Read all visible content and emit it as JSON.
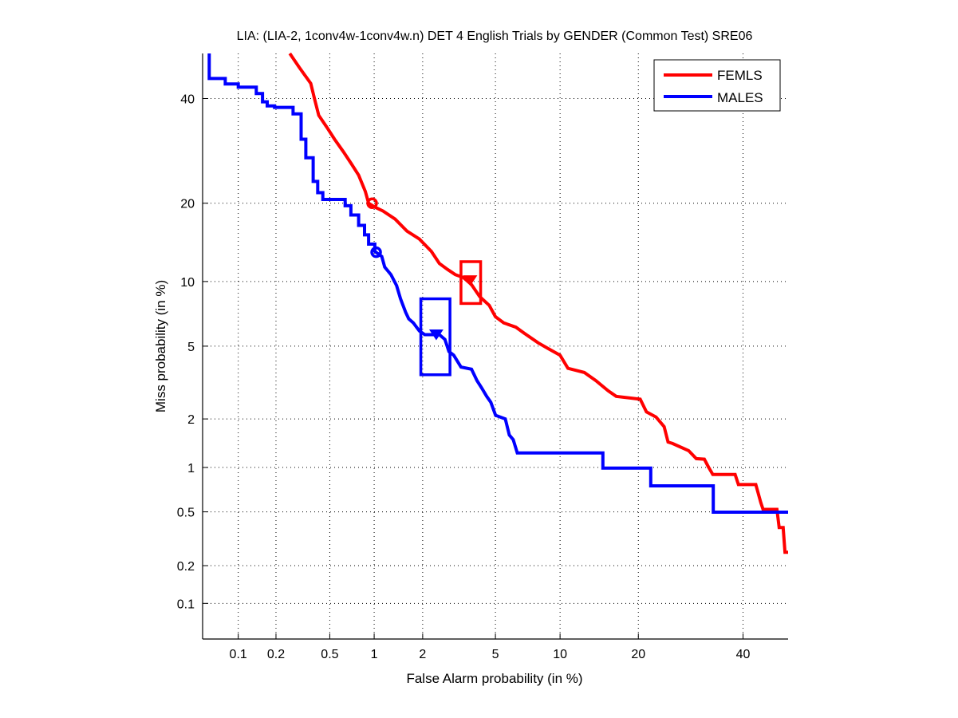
{
  "chart_data": {
    "type": "line",
    "subtype": "DET curve (normal-deviate axes)",
    "title": "LIA: (LIA-2, 1conv4w-1conv4w.n) DET 4 English Trials by GENDER (Common Test) SRE06",
    "xlabel": "False Alarm probability (in %)",
    "ylabel": "Miss probability (in %)",
    "xlim": [
      0.05,
      50
    ],
    "ylim": [
      0.05,
      50
    ],
    "xscale": "probit",
    "yscale": "probit",
    "xticks": [
      0.1,
      0.2,
      0.5,
      1,
      2,
      5,
      10,
      20,
      40
    ],
    "xtick_labels": [
      "0.1",
      "0.2",
      "0.5",
      "1",
      "2",
      "5",
      "10",
      "20",
      "40"
    ],
    "yticks": [
      0.1,
      0.2,
      0.5,
      1,
      2,
      5,
      10,
      20,
      40
    ],
    "ytick_labels": [
      "0.1",
      "0.2",
      "0.5",
      "1",
      "2",
      "5",
      "10",
      "20",
      "40"
    ],
    "grid": true,
    "grid_style": "dotted",
    "legend": {
      "placement": "top-right",
      "entries": [
        "FEMLS",
        "MALES"
      ]
    },
    "series": [
      {
        "name": "FEMLS",
        "color": "#ff0000",
        "points": [
          [
            0.255,
            50
          ],
          [
            0.3,
            46.9
          ],
          [
            0.365,
            43.3
          ],
          [
            0.39,
            39.8
          ],
          [
            0.417,
            36.4
          ],
          [
            0.477,
            33.9
          ],
          [
            0.54,
            31.5
          ],
          [
            0.62,
            29.1
          ],
          [
            0.7,
            26.9
          ],
          [
            0.79,
            24.7
          ],
          [
            0.875,
            21.9
          ],
          [
            0.92,
            20.0
          ],
          [
            1.01,
            19.4
          ],
          [
            1.14,
            18.8
          ],
          [
            1.36,
            17.6
          ],
          [
            1.61,
            15.9
          ],
          [
            1.91,
            14.85
          ],
          [
            2.25,
            13.3
          ],
          [
            2.5,
            11.9
          ],
          [
            2.78,
            11.25
          ],
          [
            3.07,
            10.7
          ],
          [
            3.4,
            10.4
          ],
          [
            3.76,
            9.7
          ],
          [
            4.15,
            8.6
          ],
          [
            4.65,
            7.85
          ],
          [
            5.0,
            6.95
          ],
          [
            5.5,
            6.5
          ],
          [
            6.3,
            6.2
          ],
          [
            6.9,
            5.8
          ],
          [
            8.0,
            5.2
          ],
          [
            8.85,
            4.87
          ],
          [
            10.0,
            4.5
          ],
          [
            10.8,
            3.84
          ],
          [
            12.6,
            3.65
          ],
          [
            14.0,
            3.3
          ],
          [
            15.6,
            2.9
          ],
          [
            16.7,
            2.7
          ],
          [
            20.3,
            2.6
          ],
          [
            21.3,
            2.2
          ],
          [
            22.9,
            2.05
          ],
          [
            24.3,
            1.8
          ],
          [
            25.0,
            1.45
          ],
          [
            25.8,
            1.42
          ],
          [
            28.8,
            1.28
          ],
          [
            30.3,
            1.14
          ],
          [
            31.9,
            1.13
          ],
          [
            32.7,
            1.01
          ],
          [
            33.6,
            0.9
          ],
          [
            38.3,
            0.9
          ],
          [
            39.0,
            0.77
          ],
          [
            42.8,
            0.77
          ],
          [
            43.9,
            0.58
          ],
          [
            44.4,
            0.52
          ],
          [
            47.5,
            0.52
          ],
          [
            48.0,
            0.386
          ],
          [
            48.9,
            0.386
          ],
          [
            49.3,
            0.253
          ],
          [
            50,
            0.253
          ]
        ],
        "min_dcf_point": [
          0.97,
          20.0
        ],
        "act_dcf_point": [
          3.7,
          10.1
        ],
        "confidence_box": {
          "fa": [
            3.3,
            4.2
          ],
          "miss": [
            8.0,
            12.1
          ]
        }
      },
      {
        "name": "MALES",
        "color": "#0000ff",
        "points": [
          [
            0.057,
            50
          ],
          [
            0.057,
            44.4
          ],
          [
            0.078,
            44.4
          ],
          [
            0.078,
            43.2
          ],
          [
            0.1,
            43.2
          ],
          [
            0.1,
            42.5
          ],
          [
            0.14,
            42.5
          ],
          [
            0.14,
            41.1
          ],
          [
            0.157,
            41.1
          ],
          [
            0.157,
            39.3
          ],
          [
            0.171,
            39.3
          ],
          [
            0.171,
            38.4
          ],
          [
            0.195,
            38.4
          ],
          [
            0.195,
            38.1
          ],
          [
            0.27,
            38.1
          ],
          [
            0.27,
            36.7
          ],
          [
            0.31,
            36.7
          ],
          [
            0.31,
            31.5
          ],
          [
            0.336,
            31.5
          ],
          [
            0.336,
            27.9
          ],
          [
            0.38,
            27.9
          ],
          [
            0.38,
            23.6
          ],
          [
            0.41,
            23.6
          ],
          [
            0.41,
            21.7
          ],
          [
            0.446,
            21.7
          ],
          [
            0.446,
            20.6
          ],
          [
            0.64,
            20.6
          ],
          [
            0.64,
            19.6
          ],
          [
            0.7,
            19.6
          ],
          [
            0.7,
            18.2
          ],
          [
            0.79,
            18.2
          ],
          [
            0.79,
            16.7
          ],
          [
            0.865,
            16.7
          ],
          [
            0.865,
            15.4
          ],
          [
            0.92,
            15.4
          ],
          [
            0.92,
            14.2
          ],
          [
            1.01,
            14.2
          ],
          [
            1.01,
            13.3
          ],
          [
            1.12,
            12.7
          ],
          [
            1.17,
            11.5
          ],
          [
            1.28,
            10.7
          ],
          [
            1.39,
            9.6
          ],
          [
            1.47,
            8.4
          ],
          [
            1.58,
            7.3
          ],
          [
            1.65,
            6.8
          ],
          [
            1.76,
            6.5
          ],
          [
            1.91,
            5.95
          ],
          [
            2.06,
            5.7
          ],
          [
            2.5,
            5.7
          ],
          [
            2.69,
            5.4
          ],
          [
            2.83,
            4.7
          ],
          [
            3.01,
            4.5
          ],
          [
            3.3,
            3.9
          ],
          [
            3.76,
            3.8
          ],
          [
            4.02,
            3.3
          ],
          [
            4.26,
            3.0
          ],
          [
            4.51,
            2.7
          ],
          [
            4.74,
            2.5
          ],
          [
            5.01,
            2.1
          ],
          [
            5.6,
            2.0
          ],
          [
            5.86,
            1.6
          ],
          [
            6.12,
            1.5
          ],
          [
            6.4,
            1.24
          ],
          [
            14.9,
            1.24
          ],
          [
            14.9,
            0.99
          ],
          [
            22.0,
            0.99
          ],
          [
            22.0,
            0.755
          ],
          [
            33.7,
            0.755
          ],
          [
            33.7,
            0.497
          ],
          [
            50,
            0.497
          ]
        ],
        "min_dcf_point": [
          1.03,
          13.2
        ],
        "act_dcf_point": [
          2.4,
          5.7
        ],
        "confidence_box": {
          "fa": [
            1.95,
            2.87
          ],
          "miss": [
            3.55,
            8.4
          ]
        }
      }
    ]
  }
}
